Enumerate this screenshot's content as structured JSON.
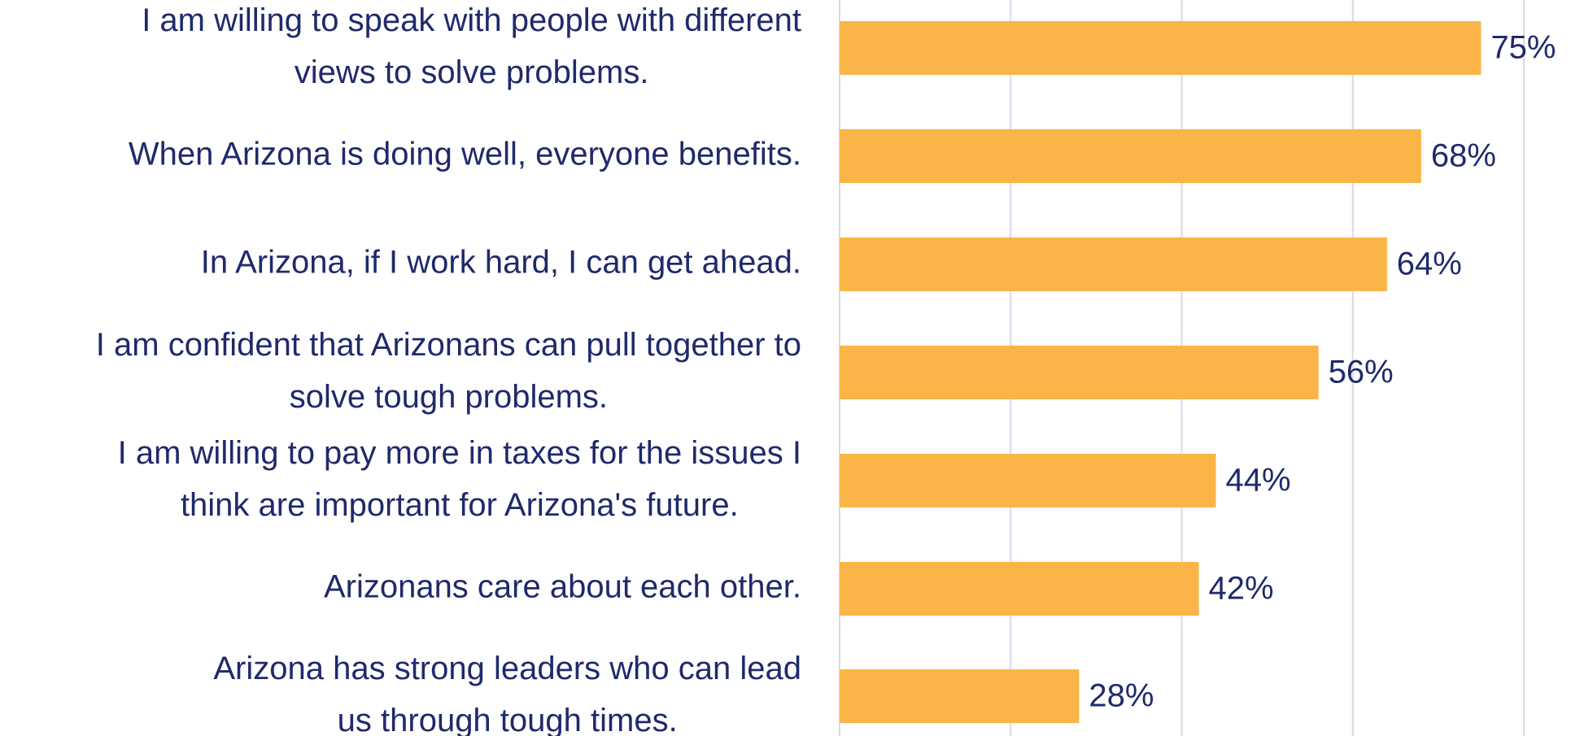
{
  "chart_data": {
    "type": "bar",
    "orientation": "horizontal",
    "categories": [
      "I am willing to speak with people with different views to solve problems.",
      "When Arizona is doing well, everyone benefits.",
      "In Arizona, if I work hard, I can get ahead.",
      "I am confident that Arizonans can pull together to solve tough problems.",
      "I am willing to pay more in taxes for the issues I think are important for Arizona's future.",
      "Arizonans care about each other.",
      "Arizona has strong leaders who can lead us through tough times."
    ],
    "values": [
      75,
      68,
      64,
      56,
      44,
      42,
      28
    ],
    "value_labels": [
      "75%",
      "68%",
      "64%",
      "56%",
      "44%",
      "42%",
      "28%"
    ],
    "color": "#fbb447",
    "xlim": [
      0,
      80
    ],
    "xticks": [
      0,
      20,
      40,
      60,
      80
    ],
    "grid": true
  }
}
